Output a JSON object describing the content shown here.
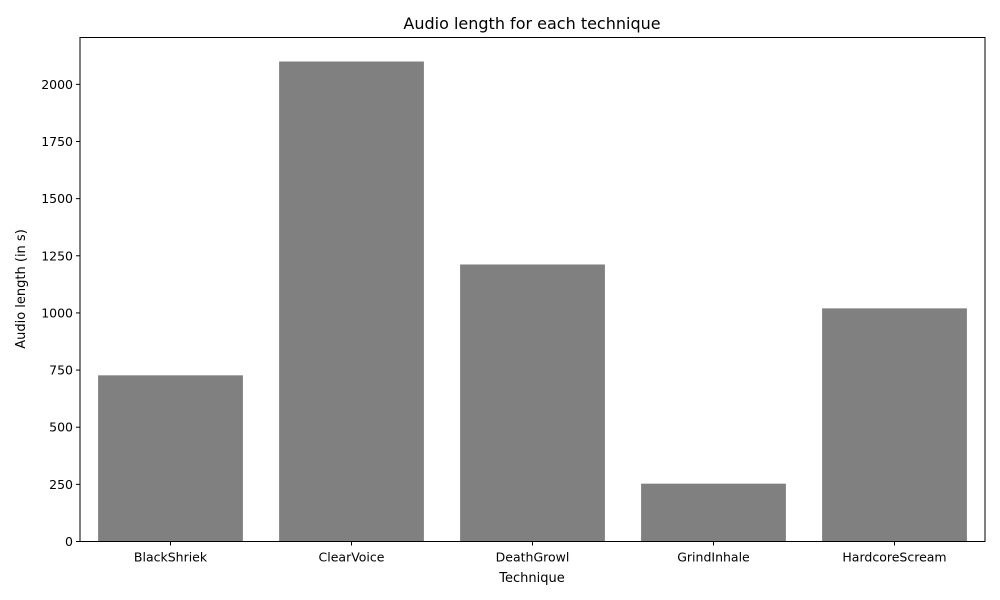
{
  "chart_data": {
    "type": "bar",
    "title": "Audio length for each technique",
    "xlabel": "Technique",
    "ylabel": "Audio length (in s)",
    "categories": [
      "BlackShriek",
      "ClearVoice",
      "DeathGrowl",
      "GrindInhale",
      "HardcoreScream"
    ],
    "values": [
      727,
      2100,
      1212,
      253,
      1020
    ],
    "ylim": [
      0,
      2205
    ],
    "yticks": [
      0,
      250,
      500,
      750,
      1000,
      1250,
      1500,
      1750,
      2000
    ],
    "bar_color": "#808080",
    "grid": false
  }
}
